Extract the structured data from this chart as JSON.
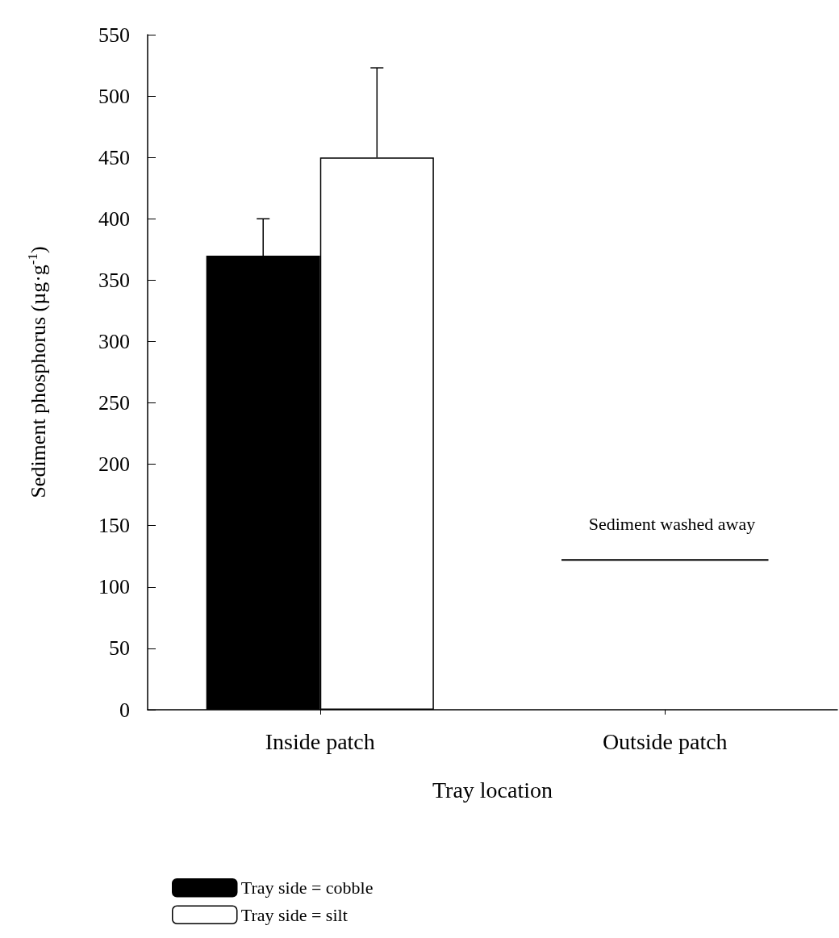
{
  "chart_data": {
    "type": "bar",
    "xlabel": "Tray location",
    "ylabel": "Sediment phosphorus (µg·g$^{-1}$)",
    "categories": [
      "Inside patch",
      "Outside patch"
    ],
    "series": [
      {
        "name": "Tray side = cobble",
        "color": "#000000",
        "values": [
          370,
          null
        ],
        "errors": [
          [
            370,
            400
          ],
          null
        ]
      },
      {
        "name": "Tray side = silt",
        "color": "#ffffff",
        "values": [
          450,
          null
        ],
        "errors": [
          [
            450,
            523
          ],
          null
        ]
      }
    ],
    "ylim": [
      0,
      550
    ],
    "yticks": [
      0,
      50,
      100,
      150,
      200,
      250,
      300,
      350,
      400,
      450,
      500,
      550
    ],
    "grid": false,
    "legend": "bottom left",
    "annotations": [
      "Sediment washed away"
    ],
    "ref_lines": [
      {
        "axis": "y",
        "value": 122
      }
    ]
  }
}
